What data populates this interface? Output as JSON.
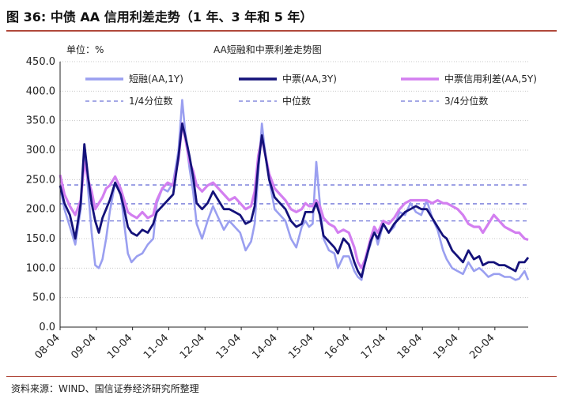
{
  "figure": {
    "label": "图  36:",
    "title": "中债 AA 信用利差走势（1 年、3 年和 5 年）",
    "source": "资料来源：WIND、国信证券经济研究所整理"
  },
  "colors": {
    "short": "#9a9ff0",
    "mid": "#14127a",
    "spread": "#d37ff0",
    "quantile": "#6f74d8",
    "grid": "#c8c8c8",
    "rule": "#b0483a"
  },
  "chart_data": {
    "type": "line",
    "title": "AA短融和中票利差走势图",
    "unit_label": "单位：%",
    "ylim": [
      0,
      450
    ],
    "yticks": [
      0,
      50,
      100,
      150,
      200,
      250,
      300,
      350,
      400,
      450
    ],
    "ytick_labels": [
      "0.0",
      "50.0",
      "100.0",
      "150.0",
      "200.0",
      "250.0",
      "300.0",
      "350.0",
      "400.0",
      "450.0"
    ],
    "x_range": [
      2008.33,
      2021.25
    ],
    "xtick_positions": [
      2008.33,
      2009.33,
      2010.33,
      2011.33,
      2012.33,
      2013.33,
      2014.33,
      2015.33,
      2016.33,
      2017.33,
      2018.33,
      2019.33,
      2020.33
    ],
    "xtick_labels": [
      "08-04",
      "09-04",
      "10-04",
      "11-04",
      "12-04",
      "13-04",
      "14-04",
      "15-04",
      "16-04",
      "17-04",
      "18-04",
      "19-04",
      "20-04"
    ],
    "legend": [
      {
        "key": "short",
        "label": "短融(AA,1Y)",
        "style": "solid"
      },
      {
        "key": "mid",
        "label": "中票(AA,3Y)",
        "style": "solid"
      },
      {
        "key": "spread",
        "label": "中票信用利差(AA,5Y)",
        "style": "solid"
      },
      {
        "key": "q1",
        "label": "1/4分位数",
        "style": "dashed"
      },
      {
        "key": "median",
        "label": "中位数",
        "style": "dashed"
      },
      {
        "key": "q3",
        "label": "3/4分位数",
        "style": "dashed"
      }
    ],
    "quantiles": {
      "q1": 180,
      "median": 209,
      "q3": 241
    },
    "series": [
      {
        "name": "短融(AA,1Y)",
        "key": "short",
        "x": [
          2008.33,
          2008.45,
          2008.6,
          2008.75,
          2008.9,
          2009.0,
          2009.1,
          2009.2,
          2009.3,
          2009.4,
          2009.5,
          2009.6,
          2009.7,
          2009.85,
          2010.0,
          2010.1,
          2010.2,
          2010.3,
          2010.45,
          2010.6,
          2010.75,
          2010.9,
          2011.0,
          2011.15,
          2011.3,
          2011.45,
          2011.6,
          2011.7,
          2011.8,
          2011.9,
          2012.0,
          2012.1,
          2012.25,
          2012.4,
          2012.55,
          2012.7,
          2012.85,
          2013.0,
          2013.15,
          2013.3,
          2013.45,
          2013.6,
          2013.7,
          2013.8,
          2013.9,
          2014.0,
          2014.1,
          2014.25,
          2014.4,
          2014.55,
          2014.7,
          2014.85,
          2015.0,
          2015.1,
          2015.2,
          2015.3,
          2015.4,
          2015.5,
          2015.6,
          2015.75,
          2015.9,
          2016.0,
          2016.15,
          2016.3,
          2016.45,
          2016.55,
          2016.65,
          2016.75,
          2016.9,
          2017.0,
          2017.1,
          2017.25,
          2017.4,
          2017.55,
          2017.7,
          2017.85,
          2018.0,
          2018.15,
          2018.3,
          2018.45,
          2018.6,
          2018.75,
          2018.9,
          2019.0,
          2019.15,
          2019.3,
          2019.45,
          2019.6,
          2019.75,
          2019.9,
          2020.0,
          2020.15,
          2020.3,
          2020.45,
          2020.6,
          2020.75,
          2020.9,
          2021.0,
          2021.15,
          2021.25
        ],
        "values": [
          238,
          200,
          170,
          140,
          200,
          305,
          235,
          160,
          105,
          100,
          115,
          150,
          195,
          245,
          230,
          175,
          125,
          110,
          120,
          125,
          140,
          150,
          210,
          235,
          230,
          245,
          300,
          385,
          320,
          270,
          230,
          175,
          150,
          180,
          205,
          185,
          165,
          180,
          170,
          160,
          130,
          145,
          175,
          260,
          345,
          290,
          250,
          200,
          190,
          180,
          150,
          135,
          170,
          180,
          170,
          175,
          280,
          210,
          150,
          130,
          125,
          100,
          120,
          120,
          95,
          85,
          80,
          115,
          140,
          165,
          140,
          175,
          160,
          170,
          195,
          190,
          210,
          195,
          190,
          215,
          185,
          165,
          130,
          115,
          100,
          95,
          90,
          110,
          95,
          100,
          95,
          85,
          90,
          90,
          85,
          85,
          80,
          82,
          95,
          80
        ]
      },
      {
        "name": "中票(AA,3Y)",
        "key": "mid",
        "x": [
          2008.33,
          2008.45,
          2008.6,
          2008.75,
          2008.9,
          2009.0,
          2009.1,
          2009.2,
          2009.3,
          2009.4,
          2009.5,
          2009.6,
          2009.7,
          2009.85,
          2010.0,
          2010.1,
          2010.2,
          2010.3,
          2010.45,
          2010.6,
          2010.75,
          2010.9,
          2011.0,
          2011.15,
          2011.3,
          2011.45,
          2011.6,
          2011.7,
          2011.8,
          2011.9,
          2012.0,
          2012.1,
          2012.25,
          2012.4,
          2012.55,
          2012.7,
          2012.85,
          2013.0,
          2013.15,
          2013.3,
          2013.45,
          2013.6,
          2013.7,
          2013.8,
          2013.9,
          2014.0,
          2014.1,
          2014.25,
          2014.4,
          2014.55,
          2014.7,
          2014.85,
          2015.0,
          2015.1,
          2015.2,
          2015.3,
          2015.4,
          2015.5,
          2015.6,
          2015.75,
          2015.9,
          2016.0,
          2016.15,
          2016.3,
          2016.45,
          2016.55,
          2016.65,
          2016.75,
          2016.9,
          2017.0,
          2017.1,
          2017.25,
          2017.4,
          2017.55,
          2017.7,
          2017.85,
          2018.0,
          2018.15,
          2018.3,
          2018.45,
          2018.6,
          2018.75,
          2018.9,
          2019.0,
          2019.15,
          2019.3,
          2019.45,
          2019.6,
          2019.75,
          2019.9,
          2020.0,
          2020.15,
          2020.3,
          2020.45,
          2020.6,
          2020.75,
          2020.9,
          2021.0,
          2021.15,
          2021.25
        ],
        "values": [
          240,
          210,
          190,
          150,
          210,
          310,
          255,
          210,
          180,
          160,
          185,
          200,
          215,
          245,
          225,
          200,
          170,
          160,
          155,
          165,
          160,
          175,
          195,
          205,
          215,
          225,
          290,
          345,
          320,
          290,
          255,
          210,
          200,
          210,
          230,
          215,
          200,
          200,
          195,
          190,
          175,
          180,
          205,
          275,
          325,
          290,
          250,
          220,
          210,
          200,
          180,
          170,
          175,
          195,
          195,
          195,
          210,
          190,
          155,
          145,
          135,
          125,
          150,
          140,
          110,
          95,
          85,
          110,
          145,
          160,
          150,
          175,
          160,
          175,
          185,
          195,
          200,
          205,
          200,
          200,
          185,
          170,
          155,
          150,
          130,
          120,
          110,
          130,
          115,
          120,
          105,
          110,
          110,
          105,
          105,
          100,
          95,
          110,
          110,
          118
        ]
      },
      {
        "name": "中票信用利差(AA,5Y)",
        "key": "spread",
        "x": [
          2008.33,
          2008.45,
          2008.6,
          2008.75,
          2008.9,
          2009.0,
          2009.1,
          2009.2,
          2009.3,
          2009.4,
          2009.5,
          2009.6,
          2009.7,
          2009.85,
          2010.0,
          2010.1,
          2010.2,
          2010.3,
          2010.45,
          2010.6,
          2010.75,
          2010.9,
          2011.0,
          2011.15,
          2011.3,
          2011.45,
          2011.6,
          2011.7,
          2011.8,
          2011.9,
          2012.0,
          2012.1,
          2012.25,
          2012.4,
          2012.55,
          2012.7,
          2012.85,
          2013.0,
          2013.15,
          2013.3,
          2013.45,
          2013.6,
          2013.7,
          2013.8,
          2013.9,
          2014.0,
          2014.1,
          2014.25,
          2014.4,
          2014.55,
          2014.7,
          2014.85,
          2015.0,
          2015.1,
          2015.2,
          2015.3,
          2015.4,
          2015.5,
          2015.6,
          2015.75,
          2015.9,
          2016.0,
          2016.15,
          2016.3,
          2016.45,
          2016.55,
          2016.65,
          2016.75,
          2016.9,
          2017.0,
          2017.1,
          2017.25,
          2017.4,
          2017.55,
          2017.7,
          2017.85,
          2018.0,
          2018.15,
          2018.3,
          2018.45,
          2018.6,
          2018.75,
          2018.9,
          2019.0,
          2019.15,
          2019.3,
          2019.45,
          2019.6,
          2019.75,
          2019.9,
          2020.0,
          2020.15,
          2020.3,
          2020.45,
          2020.6,
          2020.75,
          2020.9,
          2021.0,
          2021.15,
          2021.25
        ],
        "values": [
          258,
          225,
          205,
          190,
          215,
          280,
          250,
          230,
          200,
          210,
          220,
          235,
          240,
          255,
          235,
          215,
          195,
          190,
          185,
          195,
          185,
          190,
          215,
          235,
          245,
          240,
          285,
          345,
          315,
          280,
          265,
          240,
          230,
          240,
          245,
          235,
          225,
          215,
          220,
          210,
          200,
          205,
          230,
          290,
          320,
          290,
          260,
          235,
          225,
          215,
          200,
          195,
          200,
          210,
          205,
          205,
          215,
          205,
          185,
          175,
          170,
          160,
          165,
          160,
          135,
          110,
          100,
          115,
          150,
          170,
          160,
          180,
          175,
          185,
          200,
          210,
          215,
          215,
          215,
          215,
          210,
          215,
          210,
          210,
          205,
          200,
          190,
          175,
          170,
          170,
          160,
          175,
          190,
          180,
          170,
          165,
          160,
          160,
          150,
          148
        ]
      }
    ]
  }
}
